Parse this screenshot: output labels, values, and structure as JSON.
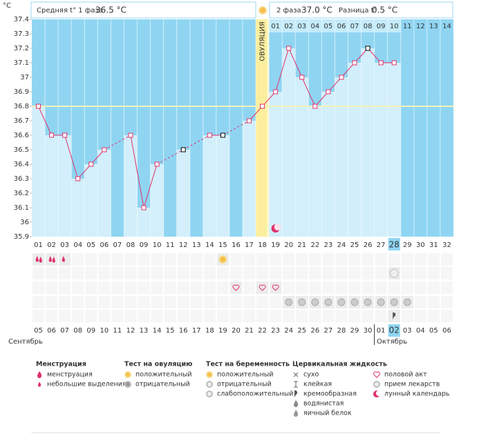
{
  "chart_data": {
    "type": "line",
    "y_label": "°C",
    "categories": [
      "01",
      "02",
      "03",
      "04",
      "05",
      "06",
      "07",
      "08",
      "09",
      "10",
      "11",
      "12",
      "13",
      "14",
      "15",
      "16",
      "17",
      "18",
      "19",
      "20",
      "21",
      "22",
      "23",
      "24",
      "25",
      "26",
      "27",
      "28",
      "29",
      "30",
      "31",
      "32"
    ],
    "values": [
      36.8,
      36.6,
      36.6,
      36.3,
      36.4,
      36.5,
      null,
      36.6,
      36.1,
      36.4,
      null,
      36.5,
      null,
      36.6,
      36.6,
      null,
      36.7,
      36.8,
      36.9,
      37.2,
      37.0,
      36.8,
      36.9,
      37.0,
      37.1,
      37.2,
      37.1,
      37.1,
      null,
      null,
      null,
      null
    ],
    "black_markers": [
      11,
      14,
      25
    ],
    "ylim": [
      35.9,
      37.4
    ],
    "yticks": [
      35.9,
      36,
      36.1,
      36.2,
      36.3,
      36.4,
      36.5,
      36.6,
      36.7,
      36.8,
      36.9,
      37,
      37.1,
      37.2,
      37.3,
      37.4
    ],
    "cover_line": 36.8,
    "ovulation_index": 17,
    "ovulation_label": "ОВУЛЯЦИЯ",
    "phase2_days": [
      "01",
      "02",
      "03",
      "04",
      "05",
      "06",
      "07",
      "08",
      "09",
      "10",
      "11",
      "12",
      "13",
      "14"
    ],
    "highlight_index": 27,
    "line_color": "#e0306a",
    "bar_color": "#d2effb",
    "background_color": "#8fd5f2"
  },
  "header": {
    "phase1_label": "Средняя t° 1 фаза",
    "phase1_value": "36.5 °C",
    "phase2_label": "2 фаза",
    "phase2_value": "37.0 °C",
    "diff_label": "Разница t°",
    "diff_value": "0.5 °C"
  },
  "dates": {
    "labels": [
      "05",
      "06",
      "07",
      "08",
      "09",
      "10",
      "11",
      "12",
      "13",
      "14",
      "15",
      "16",
      "17",
      "18",
      "19",
      "20",
      "21",
      "22",
      "23",
      "24",
      "25",
      "26",
      "27",
      "28",
      "29",
      "30",
      "01",
      "02",
      "03",
      "04",
      "05",
      "06"
    ],
    "weekend_indices": [
      2,
      3,
      9,
      10,
      16,
      17,
      23,
      24,
      30,
      31
    ],
    "highlight_index": 27,
    "month1": "Сентябрь",
    "month2": "Октябрь"
  },
  "legend": {
    "groups": [
      {
        "title": "Менструация",
        "items": [
          "менструация",
          "небольшие выделения"
        ]
      },
      {
        "title": "Тест на овуляцию",
        "items": [
          "положительный",
          "отрицательный"
        ]
      },
      {
        "title": "Тест на беременность",
        "items": [
          "положительный",
          "отрицательный",
          "слабоположительный"
        ]
      },
      {
        "title": "Цервикальная жидкость",
        "items": [
          "сухо",
          "клейкая",
          "кремообразная",
          "водянистая",
          "яичный белок"
        ]
      },
      {
        "items": [
          "половой акт",
          "прием лекарств",
          "лунный календарь"
        ]
      }
    ]
  }
}
